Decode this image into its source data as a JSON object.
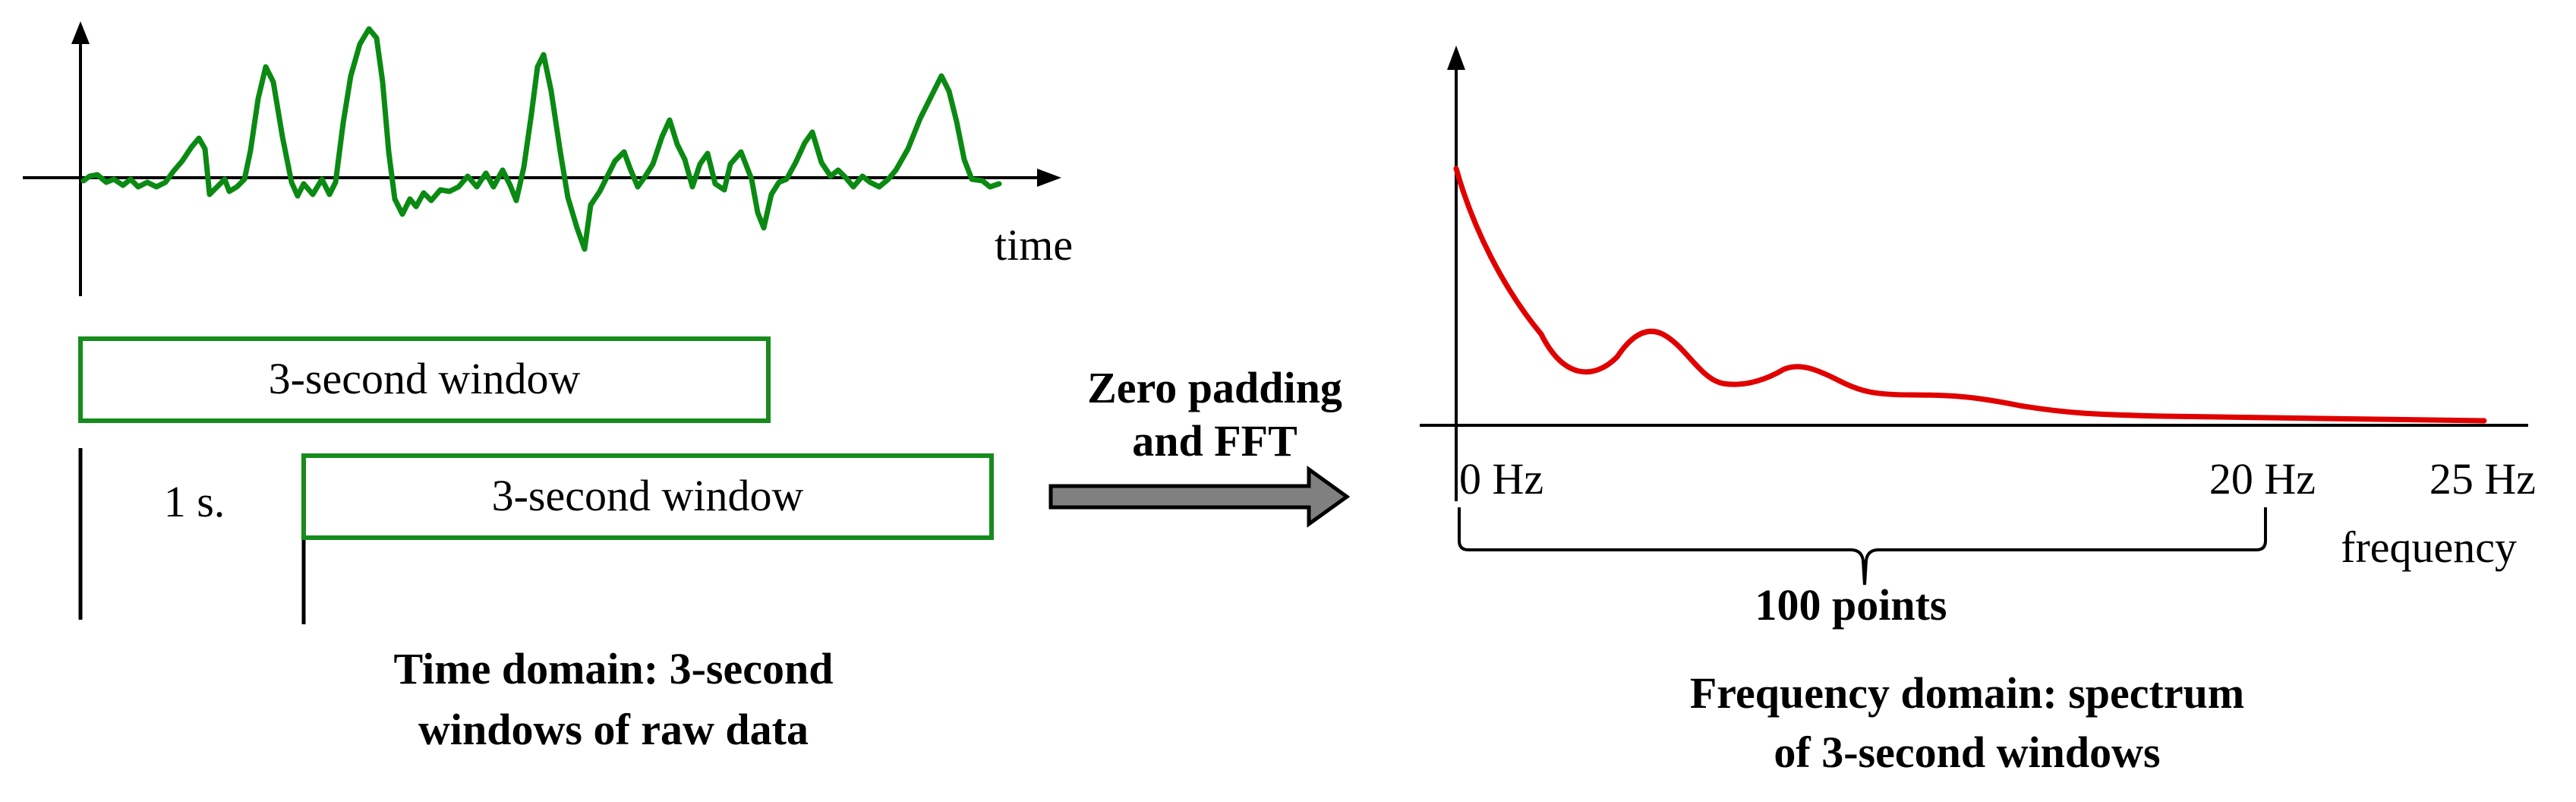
{
  "colors": {
    "signal": "#0a8a12",
    "window_border": "#168c1c",
    "spectrum": "#e00000",
    "arrow_fill": "#808080",
    "axis": "#000000"
  },
  "time_domain": {
    "axis_label": "time",
    "window1_label": "3-second window",
    "window2_label": "3-second window",
    "offset_label": "1 s.",
    "caption_line1": "Time domain: 3-second",
    "caption_line2": "windows of raw data"
  },
  "process": {
    "line1": "Zero padding",
    "line2": "and FFT",
    "arrow_icon": "arrow-right-icon"
  },
  "frequency_domain": {
    "tick_0": "0 Hz",
    "tick_20": "20 Hz",
    "tick_25": "25 Hz",
    "axis_label": "frequency",
    "brace_label": "100 points",
    "caption_line1": "Frequency domain: spectrum",
    "caption_line2": "of 3-second windows"
  }
}
